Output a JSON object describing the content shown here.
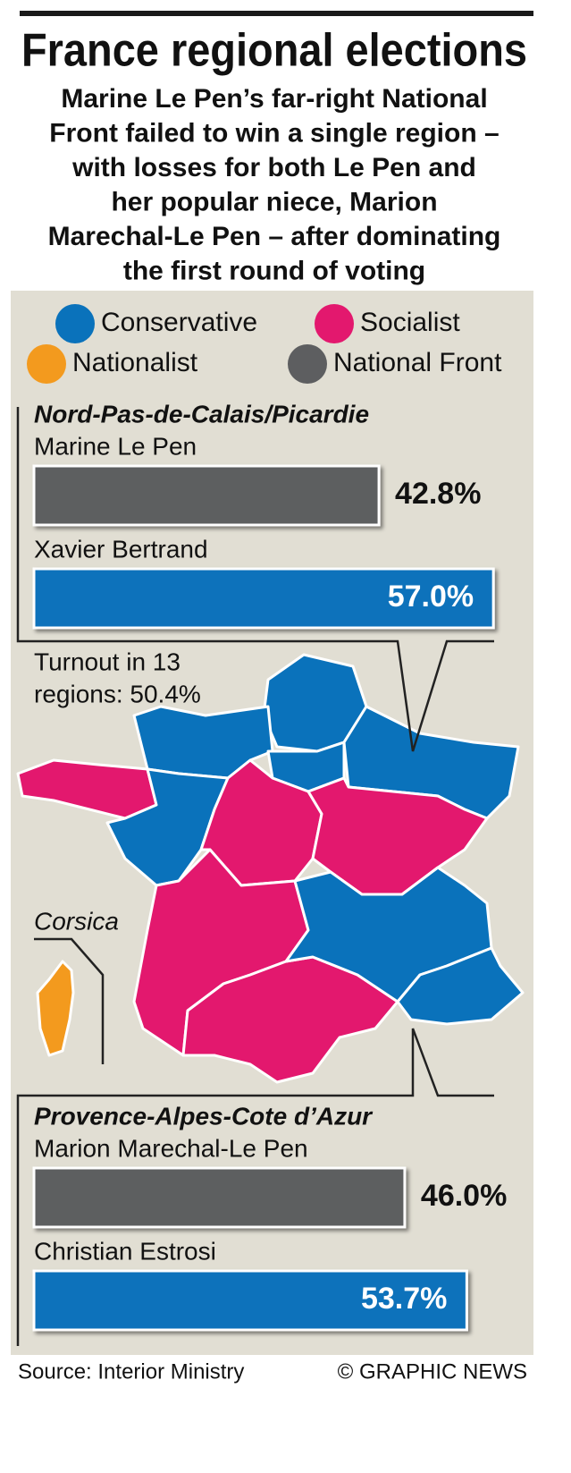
{
  "header": {
    "title": "France regional elections",
    "subtitle": [
      "Marine Le Pen’s far-right National",
      "Front failed to win a single region –",
      "with losses for both Le Pen and",
      "her popular niece, Marion",
      "Marechal-Le Pen – after dominating",
      "the first round of voting"
    ]
  },
  "legend": [
    {
      "label": "Conservative",
      "color": "#0a72bb"
    },
    {
      "label": "Socialist",
      "color": "#e3186e"
    },
    {
      "label": "Nationalist",
      "color": "#f39a1e"
    },
    {
      "label": "National Front",
      "color": "#5d5e60"
    }
  ],
  "chart_data": [
    {
      "type": "bar",
      "title": "Nord-Pas-de-Calais/Picardie",
      "categories": [
        "Marine Le Pen",
        "Xavier Bertrand"
      ],
      "values": [
        42.8,
        57.0
      ],
      "value_labels": [
        "42.8%",
        "57.0%"
      ],
      "colors": [
        "#5d5e60",
        "#0a72bb"
      ]
    },
    {
      "type": "bar",
      "title": "Provence-Alpes-Cote d’Azur",
      "categories": [
        "Marion Marechal-Le Pen",
        "Christian Estrosi"
      ],
      "values": [
        46.0,
        53.7
      ],
      "value_labels": [
        "46.0%",
        "53.7%"
      ],
      "colors": [
        "#5d5e60",
        "#0a72bb"
      ]
    }
  ],
  "turnout": [
    "Turnout in 13",
    "regions: 50.4%"
  ],
  "map_label": "Corsica",
  "footer": {
    "source": "Source: Interior Ministry",
    "credit": "© GRAPHIC NEWS"
  }
}
